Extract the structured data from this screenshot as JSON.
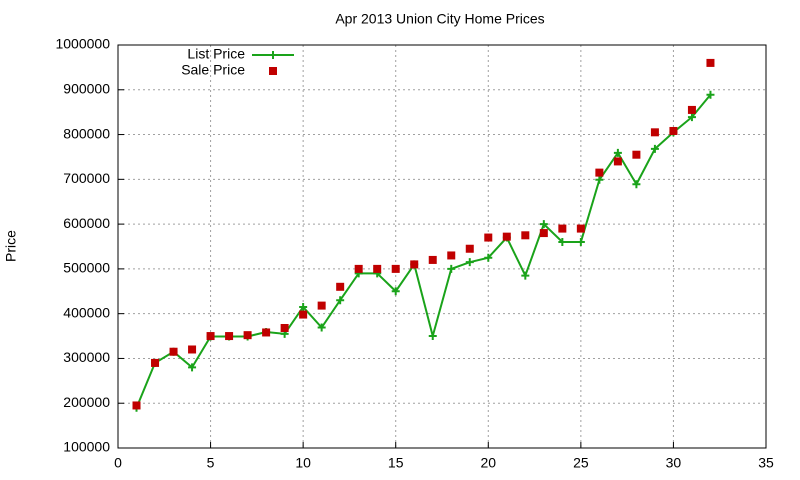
{
  "chart_data": {
    "type": "line",
    "title": "Apr 2013 Union City Home Prices",
    "y_label": "Price",
    "x": [
      1,
      2,
      3,
      4,
      5,
      6,
      7,
      8,
      9,
      10,
      11,
      12,
      13,
      14,
      15,
      16,
      17,
      18,
      19,
      20,
      21,
      22,
      23,
      24,
      25,
      26,
      27,
      28,
      29,
      30,
      31,
      32
    ],
    "series": [
      {
        "name": "List Price",
        "color": "#1aa31a",
        "mode": "lines+markers",
        "marker": "cross",
        "values": [
          190000,
          290000,
          315000,
          280000,
          349000,
          349000,
          349000,
          359000,
          355000,
          415000,
          369000,
          430000,
          490000,
          490000,
          450000,
          510000,
          350000,
          500000,
          515000,
          525000,
          570000,
          485000,
          600000,
          560000,
          560000,
          699000,
          759000,
          689000,
          768000,
          805000,
          839000,
          889000
        ]
      },
      {
        "name": "Sale Price",
        "color": "#c00000",
        "mode": "markers",
        "marker": "square",
        "values": [
          195000,
          290000,
          315000,
          320000,
          350000,
          350000,
          352000,
          358000,
          368000,
          398000,
          418000,
          460000,
          500000,
          500000,
          500000,
          510000,
          520000,
          530000,
          545000,
          570000,
          572000,
          575000,
          580000,
          590000,
          590000,
          715000,
          740000,
          755000,
          805000,
          808000,
          855000,
          960000
        ]
      }
    ],
    "xlim": [
      0,
      35
    ],
    "xticks": [
      0,
      5,
      10,
      15,
      20,
      25,
      30,
      35
    ],
    "ylim": [
      100000,
      1000000
    ],
    "yticks": [
      100000,
      200000,
      300000,
      400000,
      500000,
      600000,
      700000,
      800000,
      900000,
      1000000
    ],
    "grid": true,
    "legend": "top-left"
  }
}
